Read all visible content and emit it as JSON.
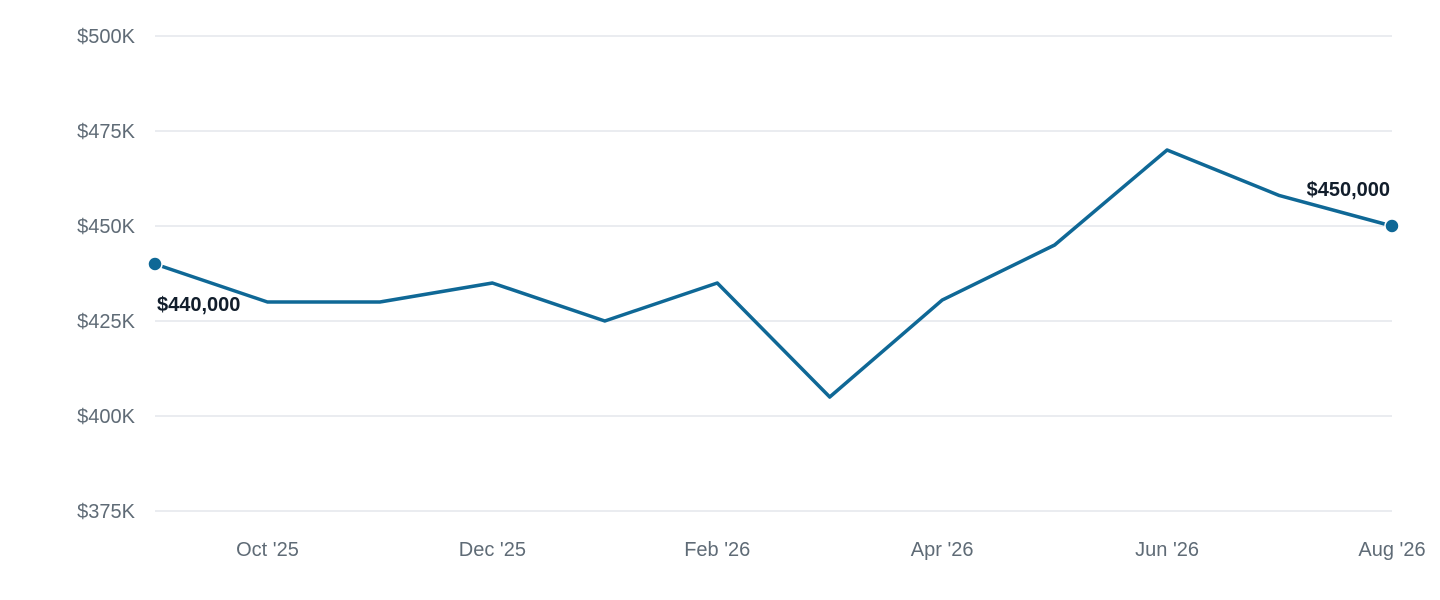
{
  "chart_data": {
    "type": "line",
    "x": [
      "Sep '25",
      "Oct '25",
      "Nov '25",
      "Dec '25",
      "Jan '26",
      "Feb '26",
      "Mar '26",
      "Apr '26",
      "May '26",
      "Jun '26",
      "Jul '26",
      "Aug '26"
    ],
    "x_tick_labels": [
      "Oct '25",
      "Dec '25",
      "Feb '26",
      "Apr '26",
      "Jun '26",
      "Aug '26"
    ],
    "series": [
      {
        "values": [
          440000,
          430000,
          430000,
          435000,
          425000,
          435000,
          405000,
          430500,
          445000,
          470000,
          458000,
          450000
        ]
      }
    ],
    "y_ticks": [
      375000,
      400000,
      425000,
      450000,
      475000,
      500000
    ],
    "y_tick_labels": [
      "$375K",
      "$400K",
      "$425K",
      "$450K",
      "$475K",
      "$500K"
    ],
    "ylim": [
      375000,
      500000
    ],
    "grid": true,
    "line_color": "#0f6896",
    "annotations": [
      {
        "x": "Sep '25",
        "label": "$440,000"
      },
      {
        "x": "Aug '26",
        "label": "$450,000"
      }
    ]
  }
}
